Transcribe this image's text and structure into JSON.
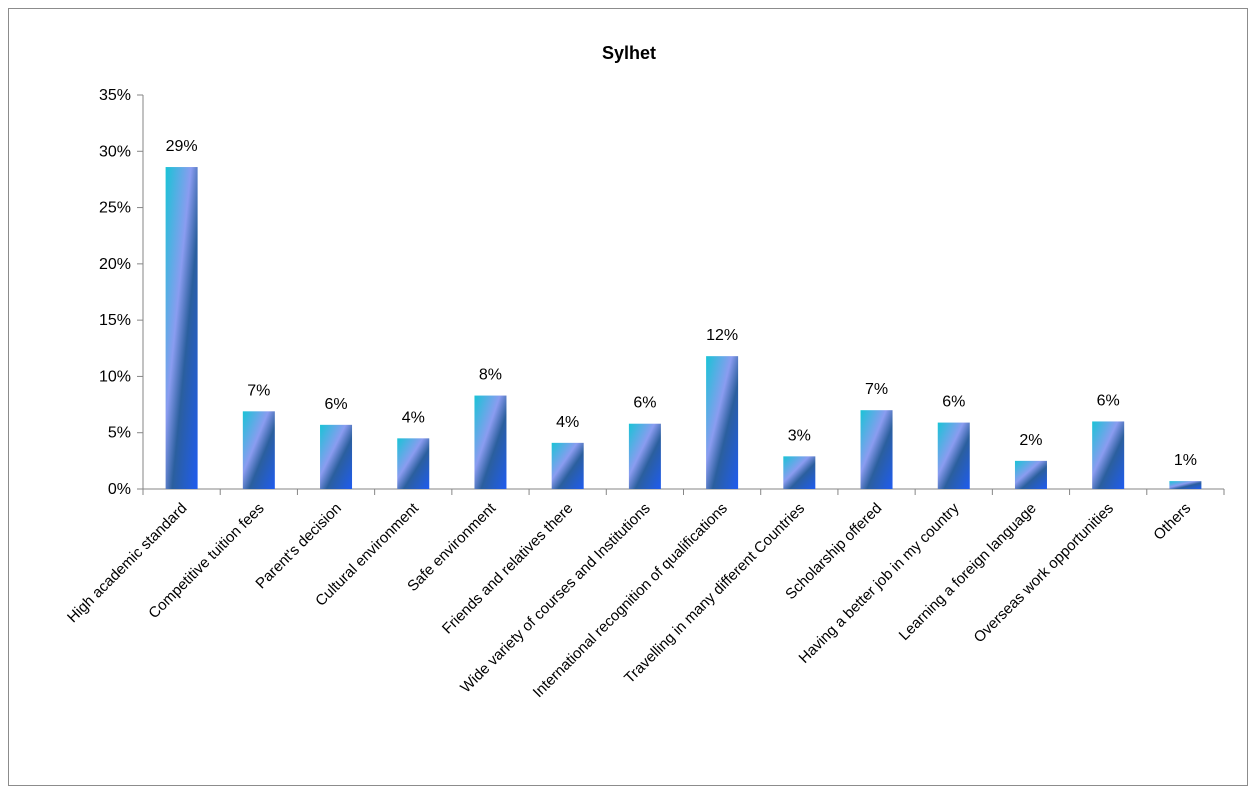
{
  "chart_data": {
    "type": "bar",
    "title": "Sylhet",
    "xlabel": "",
    "ylabel": "",
    "ylim": [
      0,
      35
    ],
    "y_ticks": [
      "0%",
      "5%",
      "10%",
      "15%",
      "20%",
      "25%",
      "30%",
      "35%"
    ],
    "grid": false,
    "legend": "none",
    "categories": [
      "High academic standard",
      "Competitive tuition fees",
      "Parent's decision",
      "Cultural environment",
      "Safe environment",
      "Friends and relatives there",
      "Wide variety of courses and Institutions",
      "International recognition of qualifications",
      "Travelling in many different Countries",
      "Scholarship offered",
      "Having a better job in my country",
      "Learning a foreign language",
      "Overseas work opportunities",
      "Others"
    ],
    "values": [
      28.6,
      6.9,
      5.7,
      4.5,
      8.3,
      4.1,
      5.8,
      11.8,
      2.9,
      7.0,
      5.9,
      2.5,
      6.0,
      0.7
    ],
    "data_labels": [
      "29%",
      "7%",
      "6%",
      "4%",
      "8%",
      "4%",
      "6%",
      "12%",
      "3%",
      "7%",
      "6%",
      "2%",
      "6%",
      "1%"
    ],
    "colors": {
      "bar_light": "#19c3d6",
      "bar_mid": "#8a9cf0",
      "bar_dark": "#2b5f9e",
      "bar_blue": "#1f5cf0",
      "axis": "#868686"
    }
  }
}
